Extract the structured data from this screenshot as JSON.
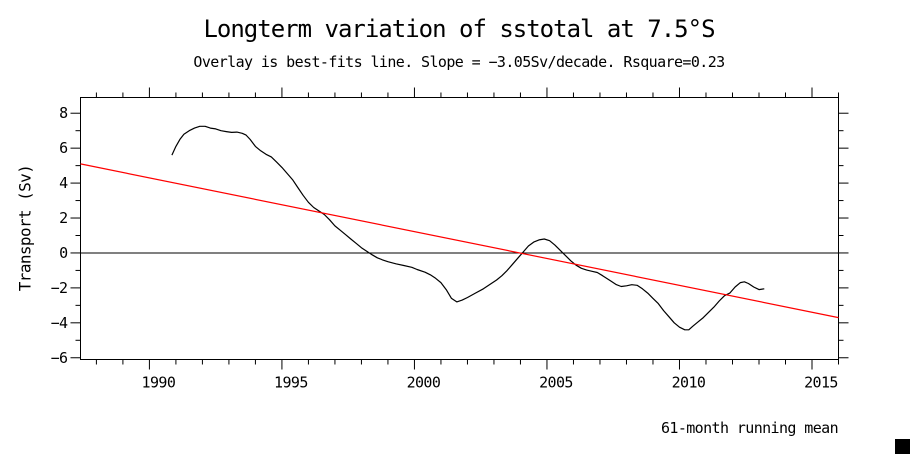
{
  "chart_data": {
    "type": "line",
    "title": "Longterm variation of sstotal at 7.5°S",
    "subtitle": "Overlay is best-fits line. Slope = −3.05Sv/decade. Rsquare=0.23",
    "ylabel": "Transport (Sv)",
    "xlabel": "",
    "annotation": "61-month running mean",
    "grid": false,
    "legend": "none",
    "axis_color": "#000000",
    "background_color": "#ffffff",
    "xlim": [
      1987.4,
      2016.0
    ],
    "ylim": [
      -6.1,
      8.9
    ],
    "x_minor_step": 1,
    "y_minor_step": 1,
    "zero_line_y": 0,
    "x_ticks": [
      {
        "v": 1990,
        "label": "1990"
      },
      {
        "v": 1995,
        "label": "1995"
      },
      {
        "v": 2000,
        "label": "2000"
      },
      {
        "v": 2005,
        "label": "2005"
      },
      {
        "v": 2010,
        "label": "2010"
      },
      {
        "v": 2015,
        "label": "2015"
      }
    ],
    "y_ticks": [
      {
        "v": 8,
        "label": "8"
      },
      {
        "v": 6,
        "label": "6"
      },
      {
        "v": 4,
        "label": "4"
      },
      {
        "v": 2,
        "label": "2"
      },
      {
        "v": 0,
        "label": "0"
      },
      {
        "v": -2,
        "label": "−2"
      },
      {
        "v": -4,
        "label": "−4"
      },
      {
        "v": -6,
        "label": "−6"
      }
    ],
    "series": [
      {
        "id": "sstotal",
        "name": "sstotal 61-month running mean",
        "color": "#000000",
        "points": [
          [
            1990.85,
            5.6
          ],
          [
            1991.0,
            6.1
          ],
          [
            1991.15,
            6.5
          ],
          [
            1991.3,
            6.8
          ],
          [
            1991.5,
            7.0
          ],
          [
            1991.7,
            7.15
          ],
          [
            1991.9,
            7.25
          ],
          [
            1992.1,
            7.25
          ],
          [
            1992.3,
            7.15
          ],
          [
            1992.5,
            7.1
          ],
          [
            1992.7,
            7.0
          ],
          [
            1992.9,
            6.95
          ],
          [
            1993.1,
            6.9
          ],
          [
            1993.3,
            6.92
          ],
          [
            1993.5,
            6.85
          ],
          [
            1993.65,
            6.75
          ],
          [
            1993.8,
            6.5
          ],
          [
            1994.0,
            6.1
          ],
          [
            1994.2,
            5.85
          ],
          [
            1994.4,
            5.65
          ],
          [
            1994.6,
            5.5
          ],
          [
            1994.8,
            5.2
          ],
          [
            1995.0,
            4.9
          ],
          [
            1995.2,
            4.55
          ],
          [
            1995.4,
            4.2
          ],
          [
            1995.6,
            3.75
          ],
          [
            1995.8,
            3.3
          ],
          [
            1996.0,
            2.9
          ],
          [
            1996.2,
            2.6
          ],
          [
            1996.4,
            2.4
          ],
          [
            1996.6,
            2.2
          ],
          [
            1996.8,
            1.9
          ],
          [
            1997.0,
            1.55
          ],
          [
            1997.2,
            1.3
          ],
          [
            1997.4,
            1.05
          ],
          [
            1997.6,
            0.8
          ],
          [
            1997.8,
            0.55
          ],
          [
            1998.0,
            0.3
          ],
          [
            1998.2,
            0.1
          ],
          [
            1998.4,
            -0.1
          ],
          [
            1998.6,
            -0.28
          ],
          [
            1998.8,
            -0.4
          ],
          [
            1999.0,
            -0.5
          ],
          [
            1999.3,
            -0.62
          ],
          [
            1999.6,
            -0.72
          ],
          [
            1999.9,
            -0.82
          ],
          [
            2000.1,
            -0.95
          ],
          [
            2000.4,
            -1.1
          ],
          [
            2000.6,
            -1.25
          ],
          [
            2000.8,
            -1.45
          ],
          [
            2001.0,
            -1.7
          ],
          [
            2001.2,
            -2.1
          ],
          [
            2001.4,
            -2.6
          ],
          [
            2001.6,
            -2.8
          ],
          [
            2001.8,
            -2.7
          ],
          [
            2002.0,
            -2.55
          ],
          [
            2002.3,
            -2.3
          ],
          [
            2002.6,
            -2.05
          ],
          [
            2002.9,
            -1.75
          ],
          [
            2003.1,
            -1.55
          ],
          [
            2003.3,
            -1.3
          ],
          [
            2003.5,
            -1.0
          ],
          [
            2003.7,
            -0.65
          ],
          [
            2003.9,
            -0.3
          ],
          [
            2004.1,
            0.05
          ],
          [
            2004.3,
            0.4
          ],
          [
            2004.5,
            0.62
          ],
          [
            2004.7,
            0.75
          ],
          [
            2004.9,
            0.8
          ],
          [
            2005.1,
            0.7
          ],
          [
            2005.3,
            0.45
          ],
          [
            2005.5,
            0.15
          ],
          [
            2005.7,
            -0.15
          ],
          [
            2005.9,
            -0.45
          ],
          [
            2006.1,
            -0.7
          ],
          [
            2006.3,
            -0.88
          ],
          [
            2006.5,
            -0.98
          ],
          [
            2006.7,
            -1.05
          ],
          [
            2006.9,
            -1.12
          ],
          [
            2007.1,
            -1.3
          ],
          [
            2007.4,
            -1.6
          ],
          [
            2007.6,
            -1.8
          ],
          [
            2007.8,
            -1.92
          ],
          [
            2008.0,
            -1.88
          ],
          [
            2008.2,
            -1.82
          ],
          [
            2008.4,
            -1.85
          ],
          [
            2008.6,
            -2.05
          ],
          [
            2008.8,
            -2.3
          ],
          [
            2009.0,
            -2.6
          ],
          [
            2009.2,
            -2.9
          ],
          [
            2009.4,
            -3.3
          ],
          [
            2009.6,
            -3.65
          ],
          [
            2009.8,
            -4.0
          ],
          [
            2010.0,
            -4.25
          ],
          [
            2010.2,
            -4.4
          ],
          [
            2010.35,
            -4.4
          ],
          [
            2010.5,
            -4.2
          ],
          [
            2010.7,
            -3.95
          ],
          [
            2010.9,
            -3.7
          ],
          [
            2011.1,
            -3.4
          ],
          [
            2011.3,
            -3.1
          ],
          [
            2011.5,
            -2.75
          ],
          [
            2011.7,
            -2.45
          ],
          [
            2011.9,
            -2.3
          ],
          [
            2012.1,
            -1.95
          ],
          [
            2012.3,
            -1.7
          ],
          [
            2012.45,
            -1.65
          ],
          [
            2012.6,
            -1.75
          ],
          [
            2012.8,
            -1.95
          ],
          [
            2013.0,
            -2.1
          ],
          [
            2013.2,
            -2.05
          ]
        ]
      },
      {
        "id": "trend",
        "name": "best-fit line",
        "color": "#ff0000",
        "points": [
          [
            1987.4,
            5.1
          ],
          [
            2016.0,
            -3.7
          ]
        ]
      }
    ]
  }
}
